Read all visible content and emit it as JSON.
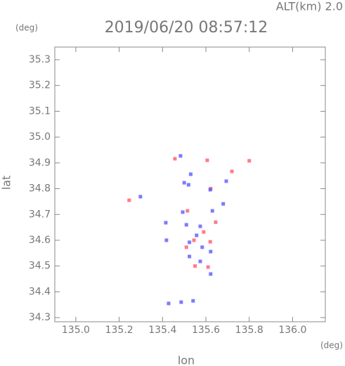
{
  "chart_data": {
    "type": "scatter",
    "subtitle": "ALT(km) 2.0",
    "title": "2019/06/20 08:57:12",
    "y_unit": "(deg)",
    "x_unit": "(deg)",
    "ylabel": "lat",
    "xlabel": "lon",
    "xlim": [
      134.903,
      136.151
    ],
    "ylim": [
      34.284,
      35.349
    ],
    "xticks": [
      {
        "value": 135.0,
        "label": "135.0"
      },
      135.2,
      135.4,
      135.6,
      135.8,
      {
        "value": 136.0,
        "label": "136.0"
      }
    ],
    "yticks": [
      34.3,
      34.4,
      34.5,
      34.6,
      34.7,
      34.8,
      34.9,
      {
        "value": 35.0,
        "label": "35.0"
      },
      35.1,
      35.2,
      35.3
    ],
    "series": [
      {
        "color": "#ff5a6e",
        "x": [
          135.457,
          135.606,
          135.8,
          135.246,
          135.515,
          135.59,
          135.545,
          135.62,
          135.61,
          135.55,
          135.51,
          135.645,
          135.72,
          135.622
        ],
        "y": [
          34.916,
          34.91,
          34.908,
          34.755,
          34.714,
          34.632,
          34.6,
          34.594,
          34.496,
          34.5,
          34.573,
          34.67,
          34.867,
          34.8
        ]
      },
      {
        "color": "#5a5aff",
        "x": [
          135.483,
          135.5,
          135.52,
          135.53,
          135.62,
          135.694,
          135.68,
          135.493,
          135.51,
          135.557,
          135.524,
          135.583,
          135.524,
          135.574,
          135.622,
          135.622,
          135.574,
          135.428,
          135.486,
          135.541,
          135.298,
          135.415,
          135.418,
          135.63
        ],
        "y": [
          34.927,
          34.823,
          34.815,
          34.856,
          34.796,
          34.829,
          34.741,
          34.709,
          34.66,
          34.619,
          34.592,
          34.573,
          34.537,
          34.518,
          34.556,
          34.469,
          34.654,
          34.355,
          34.36,
          34.365,
          34.769,
          34.668,
          34.6,
          34.714
        ]
      }
    ]
  }
}
